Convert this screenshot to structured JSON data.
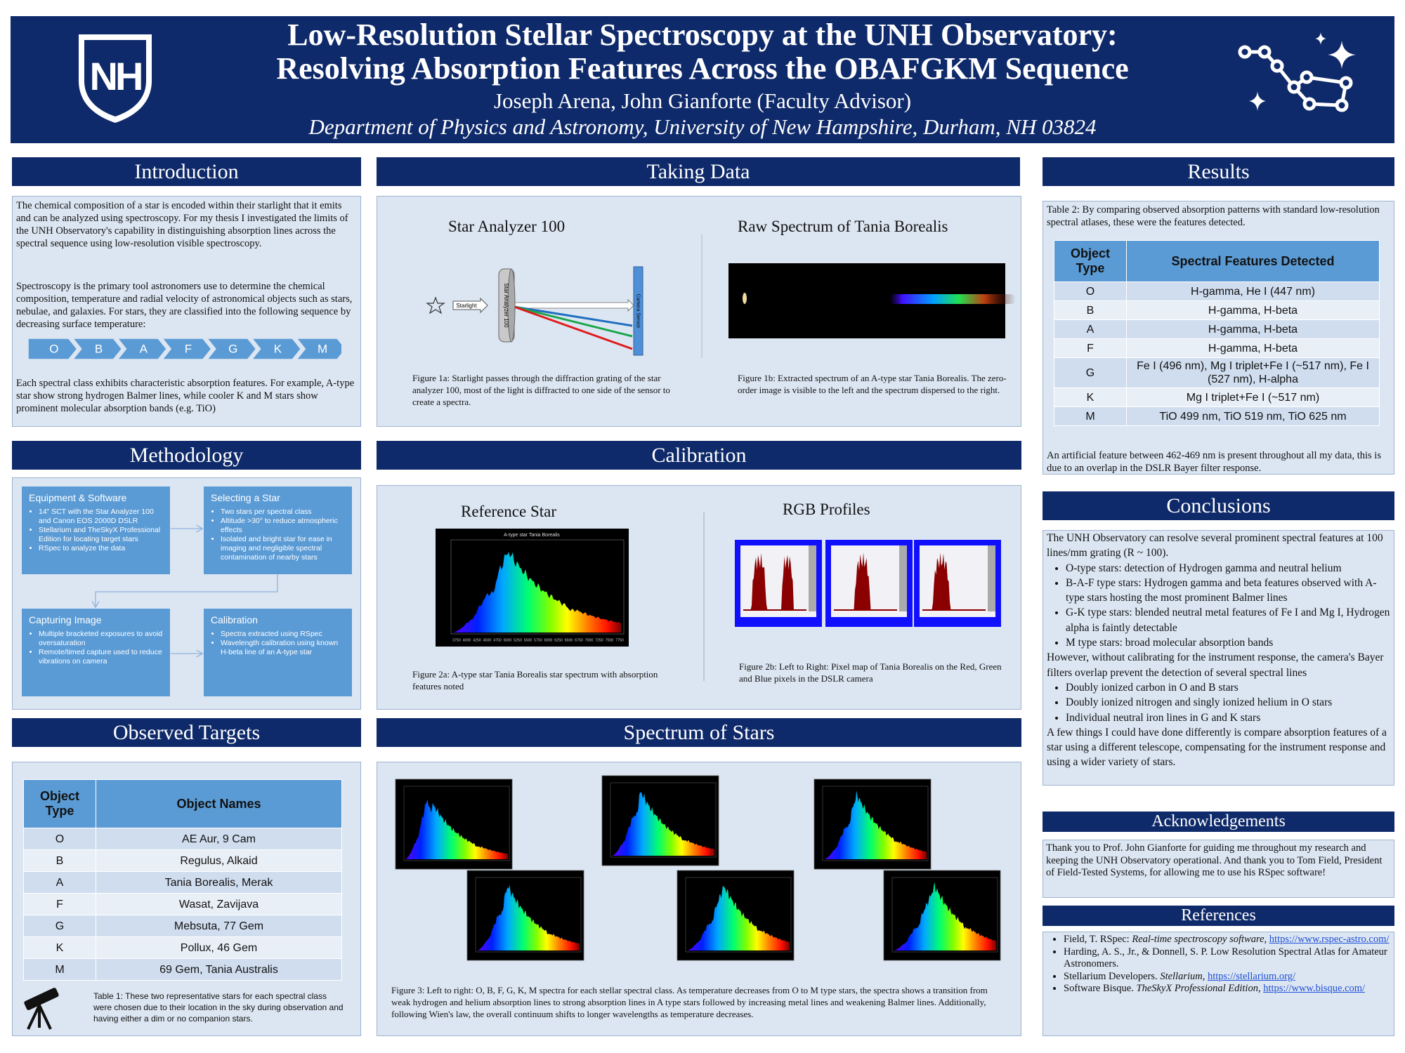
{
  "header": {
    "logo": "NH",
    "title": [
      "Low-Resolution Stellar Spectroscopy at the UNH Observatory:",
      "Resolving Absorption Features Across the OBAFGKM Sequence"
    ],
    "presenter": "Joseph Arena",
    "advisor": ", John Gianforte (Faculty Advisor)",
    "affiliation": "Department of Physics and Astronomy, University of New Hampshire, Durham, NH 03824"
  },
  "introduction": {
    "heading": "Introduction",
    "paragraphs": [
      "The chemical composition of a star is encoded within their starlight that it emits and can be analyzed using spectroscopy. For my thesis I investigated the limits of the UNH Observatory's capability in distinguishing absorption lines across the spectral sequence using low-resolution visible spectroscopy.",
      "Spectroscopy is the primary tool astronomers use to determine the chemical composition, temperature and radial velocity of  astronomical objects such as stars, nebulae, and galaxies. For stars, they are classified into the following sequence by decreasing surface temperature:"
    ],
    "sequence": [
      "O",
      "B",
      "A",
      "F",
      "G",
      "K",
      "M"
    ],
    "closing": "Each spectral class exhibits characteristic absorption features. For example, A-type star show strong hydrogen Balmer lines, while cooler K and M stars show prominent molecular absorption bands (e.g. TiO)"
  },
  "methodology": {
    "heading": "Methodology",
    "steps": [
      {
        "title": "Equipment & Software",
        "items": [
          "14” SCT with the Star Analyzer 100 and Canon EOS 2000D DSLR",
          "Stellarium and TheSkyX Professional Edition for locating target stars",
          "RSpec to analyze the data"
        ]
      },
      {
        "title": "Selecting a Star",
        "items": [
          "Two stars per spectral class",
          "Altitude >30° to reduce atmospheric effects",
          "Isolated and bright star for ease in imaging and negligible spectral contamination of nearby stars"
        ]
      },
      {
        "title": "Capturing Image",
        "items": [
          "Multiple bracketed exposures to avoid oversaturation",
          "Remote/timed capture used to reduce vibrations on camera"
        ]
      },
      {
        "title": "Calibration",
        "items": [
          "Spectra extracted using RSpec",
          "Wavelength calibration using known H-beta line of an A-type star"
        ]
      }
    ]
  },
  "observed_targets": {
    "heading": "Observed Targets",
    "table": {
      "columns": [
        "Object Type",
        "Object Names"
      ],
      "rows": [
        [
          "O",
          "AE Aur, 9 Cam"
        ],
        [
          "B",
          "Regulus, Alkaid"
        ],
        [
          "A",
          "Tania Borealis, Merak"
        ],
        [
          "F",
          "Wasat, Zavijava"
        ],
        [
          "G",
          "Mebsuta, 77 Gem"
        ],
        [
          "K",
          "Pollux, 46 Gem"
        ],
        [
          "M",
          "69 Gem, Tania Australis"
        ]
      ]
    },
    "caption": "Table 1: These two representative stars for each spectral class were chosen due to their location in the sky during observation and having either a dim or no companion stars."
  },
  "taking_data": {
    "heading": "Taking Data",
    "figures": [
      {
        "title": "Star Analyzer 100",
        "labels": {
          "source": "Starlight",
          "grating": "Star Analyzer 100",
          "sensor": "Camera Sensor"
        },
        "caption": "Figure 1a: Starlight passes through the diffraction grating of the star analyzer 100, most of the light is diffracted to one side of the sensor to create a spectra."
      },
      {
        "title": "Raw Spectrum of Tania Borealis",
        "caption": "Figure 1b: Extracted spectrum of an A-type star Tania Borealis. The zero-order image is visible to the left and the spectrum dispersed to the right."
      }
    ]
  },
  "calibration": {
    "heading": "Calibration",
    "figures": [
      {
        "title": "Reference Star",
        "plot_title": "A-type star Tania Borealis",
        "x_ticks": [
          3750,
          4000,
          4250,
          4500,
          4750,
          5000,
          5250,
          5500,
          5750,
          6000,
          6250,
          6500,
          6750,
          7000,
          7250,
          7500,
          7750
        ],
        "caption": "Figure 2a: A-type star Tania Borealis star spectrum with absorption features noted"
      },
      {
        "title": "RGB Profiles",
        "caption": "Figure 2b: Left to Right: Pixel map of Tania Borealis on the Red, Green and Blue pixels in the DSLR camera"
      }
    ]
  },
  "spectrum_of_stars": {
    "heading": "Spectrum of Stars",
    "caption": "Figure 3: Left to right: O, B, F, G, K, M spectra for each stellar spectral class. As temperature decreases from O to M type stars, the spectra shows a transition from weak hydrogen and helium absorption lines to strong absorption lines in A type stars followed by increasing metal lines and weakening Balmer lines. Additionally, following Wien's law, the overall continuum shifts to longer wavelengths as temperature decreases."
  },
  "results": {
    "heading": "Results",
    "caption": "Table 2: By comparing observed absorption patterns with standard low-resolution spectral atlases, these were the features detected.",
    "table": {
      "columns": [
        "Object Type",
        "Spectral Features Detected"
      ],
      "rows": [
        [
          "O",
          "H-gamma, He I (447 nm)"
        ],
        [
          "B",
          "H-gamma, H-beta"
        ],
        [
          "A",
          "H-gamma, H-beta"
        ],
        [
          "F",
          "H-gamma, H-beta"
        ],
        [
          "G",
          "Fe I (496 nm), Mg I triplet+Fe I (~517 nm), Fe I (527 nm), H-alpha"
        ],
        [
          "K",
          "Mg I triplet+Fe I (~517 nm)"
        ],
        [
          "M",
          "TiO 499 nm, TiO 519 nm, TiO 625 nm"
        ]
      ]
    },
    "note": "An artificial feature between 462-469 nm is present throughout all my data, this is due to an overlap in the DSLR Bayer filter response."
  },
  "conclusions": {
    "heading": "Conclusions",
    "blocks": [
      {
        "text": "The UNH Observatory can resolve several prominent spectral features at 100 lines/mm grating (R ~ 100)."
      },
      {
        "bullets": [
          "O-type stars: detection of Hydrogen gamma and neutral helium",
          "B-A-F type stars: Hydrogen gamma and beta features observed with A-type stars hosting the most prominent Balmer lines",
          "G-K type stars: blended neutral metal features of Fe I and Mg I, Hydrogen alpha is faintly detectable",
          "M type stars: broad molecular absorption bands"
        ]
      },
      {
        "text": "However, without calibrating for the instrument response, the camera's Bayer filters overlap prevent the detection of several spectral lines"
      },
      {
        "bullets": [
          "Doubly ionized carbon in O and B stars",
          "Doubly ionized nitrogen and singly ionized helium in O stars",
          "Individual neutral iron lines in G and K stars"
        ]
      },
      {
        "text": "A few things I could have done differently is compare absorption features of a star using a different telescope, compensating for the instrument response and using a wider variety of stars."
      }
    ]
  },
  "acknowledgements": {
    "heading": "Acknowledgements",
    "text": "Thank you to Prof. John Gianforte for guiding me throughout my research and keeping the UNH Observatory operational. And thank you to Tom Field, President of Field-Tested Systems, for allowing me to use his RSpec software!"
  },
  "references": {
    "heading": "References",
    "items": [
      {
        "author": "Field, T. RSpec: ",
        "title": "Real-time spectroscopy software,",
        "url": "https://www.rspec-astro.com/"
      },
      {
        "author": "Harding, A. S., Jr., & Donnell, S. P. Low Resolution Spectral Atlas for Amateur Astronomers."
      },
      {
        "author": "Stellarium Developers. ",
        "title": "Stellarium,",
        "url": "https://stellarium.org/"
      },
      {
        "author": "Software Bisque. ",
        "title": "TheSkyX Professional Edition,",
        "url": "https://www.bisque.com/"
      }
    ]
  }
}
